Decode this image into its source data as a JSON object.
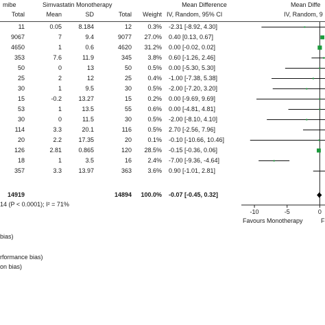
{
  "header": {
    "group1_title": "mibe",
    "group2_title": "Simvastatin Monotherapy",
    "col_total1": "Total",
    "col_mean": "Mean",
    "col_sd": "SD",
    "col_total2": "Total",
    "col_weight": "Weight",
    "md_title": "Mean Difference",
    "md_method": "IV, Random, 95% CI",
    "plot_title": "Mean Diffe",
    "plot_method": "IV, Random, 9"
  },
  "rows": [
    {
      "total1": "11",
      "mean": "0.05",
      "sd": "8.184",
      "total2": "12",
      "weight": "0.3%",
      "ci": "-2.31 [-8.92, 4.30]"
    },
    {
      "total1": "9067",
      "mean": "7",
      "sd": "9.4",
      "total2": "9077",
      "weight": "27.0%",
      "ci": "0.40 [0.13, 0.67]"
    },
    {
      "total1": "4650",
      "mean": "1",
      "sd": "0.6",
      "total2": "4620",
      "weight": "31.2%",
      "ci": "0.00 [-0.02, 0.02]"
    },
    {
      "total1": "353",
      "mean": "7.6",
      "sd": "11.9",
      "total2": "345",
      "weight": "3.8%",
      "ci": "0.60 [-1.26, 2.46]"
    },
    {
      "total1": "50",
      "mean": "0",
      "sd": "13",
      "total2": "50",
      "weight": "0.5%",
      "ci": "0.00 [-5.30, 5.30]"
    },
    {
      "total1": "25",
      "mean": "2",
      "sd": "12",
      "total2": "25",
      "weight": "0.4%",
      "ci": "-1.00 [-7.38, 5.38]"
    },
    {
      "total1": "30",
      "mean": "1",
      "sd": "9.5",
      "total2": "30",
      "weight": "0.5%",
      "ci": "-2.00 [-7.20, 3.20]"
    },
    {
      "total1": "15",
      "mean": "-0.2",
      "sd": "13.27",
      "total2": "15",
      "weight": "0.2%",
      "ci": "0.00 [-9.69, 9.69]"
    },
    {
      "total1": "53",
      "mean": "1",
      "sd": "13.5",
      "total2": "55",
      "weight": "0.6%",
      "ci": "0.00 [-4.81, 4.81]"
    },
    {
      "total1": "30",
      "mean": "0",
      "sd": "11.5",
      "total2": "30",
      "weight": "0.5%",
      "ci": "-2.00 [-8.10, 4.10]"
    },
    {
      "total1": "114",
      "mean": "3.3",
      "sd": "20.1",
      "total2": "116",
      "weight": "0.5%",
      "ci": "2.70 [-2.56, 7.96]"
    },
    {
      "total1": "20",
      "mean": "2.2",
      "sd": "17.35",
      "total2": "20",
      "weight": "0.1%",
      "ci": "-0.10 [-10.66, 10.46]"
    },
    {
      "total1": "126",
      "mean": "2.81",
      "sd": "0.865",
      "total2": "120",
      "weight": "28.5%",
      "ci": "-0.15 [-0.36, 0.06]"
    },
    {
      "total1": "18",
      "mean": "1",
      "sd": "3.5",
      "total2": "16",
      "weight": "2.4%",
      "ci": "-7.00 [-9.36, -4.64]"
    },
    {
      "total1": "357",
      "mean": "3.3",
      "sd": "13.97",
      "total2": "363",
      "weight": "3.6%",
      "ci": "0.90 [-1.01, 2.81]"
    }
  ],
  "total_row": {
    "total1": "14919",
    "total2": "14894",
    "weight": "100.0%",
    "ci": "-0.07 [-0.45, 0.32]"
  },
  "heterogeneity": "14 (P < 0.0001); I² = 71%",
  "footer_lines": [
    "bias)",
    "rformance bias)",
    "on bias)"
  ],
  "axis": {
    "favours_left": "Favours Monotherapy",
    "favours_right": "F"
  },
  "chart_data": {
    "type": "forest",
    "xlim": [
      -12,
      0.8
    ],
    "xticks": [
      -10,
      -5,
      0
    ],
    "xtick_labels": [
      "-10",
      "-5",
      "0"
    ],
    "ci_color": "#111111",
    "square_color": "#1a9a3a",
    "diamond_color": "#000000",
    "studies": [
      {
        "md": -2.31,
        "lo": -8.92,
        "hi": 4.3,
        "weight": 0.3
      },
      {
        "md": 0.4,
        "lo": 0.13,
        "hi": 0.67,
        "weight": 27.0
      },
      {
        "md": 0.0,
        "lo": -0.02,
        "hi": 0.02,
        "weight": 31.2
      },
      {
        "md": 0.6,
        "lo": -1.26,
        "hi": 2.46,
        "weight": 3.8
      },
      {
        "md": 0.0,
        "lo": -5.3,
        "hi": 5.3,
        "weight": 0.5
      },
      {
        "md": -1.0,
        "lo": -7.38,
        "hi": 5.38,
        "weight": 0.4
      },
      {
        "md": -2.0,
        "lo": -7.2,
        "hi": 3.2,
        "weight": 0.5
      },
      {
        "md": 0.0,
        "lo": -9.69,
        "hi": 9.69,
        "weight": 0.2
      },
      {
        "md": 0.0,
        "lo": -4.81,
        "hi": 4.81,
        "weight": 0.6
      },
      {
        "md": -2.0,
        "lo": -8.1,
        "hi": 4.1,
        "weight": 0.5
      },
      {
        "md": 2.7,
        "lo": -2.56,
        "hi": 7.96,
        "weight": 0.5
      },
      {
        "md": -0.1,
        "lo": -10.66,
        "hi": 10.46,
        "weight": 0.1
      },
      {
        "md": -0.15,
        "lo": -0.36,
        "hi": 0.06,
        "weight": 28.5
      },
      {
        "md": -7.0,
        "lo": -9.36,
        "hi": -4.64,
        "weight": 2.4
      },
      {
        "md": 0.9,
        "lo": -1.01,
        "hi": 2.81,
        "weight": 3.6
      }
    ],
    "pooled": {
      "md": -0.07,
      "lo": -0.45,
      "hi": 0.32
    }
  }
}
